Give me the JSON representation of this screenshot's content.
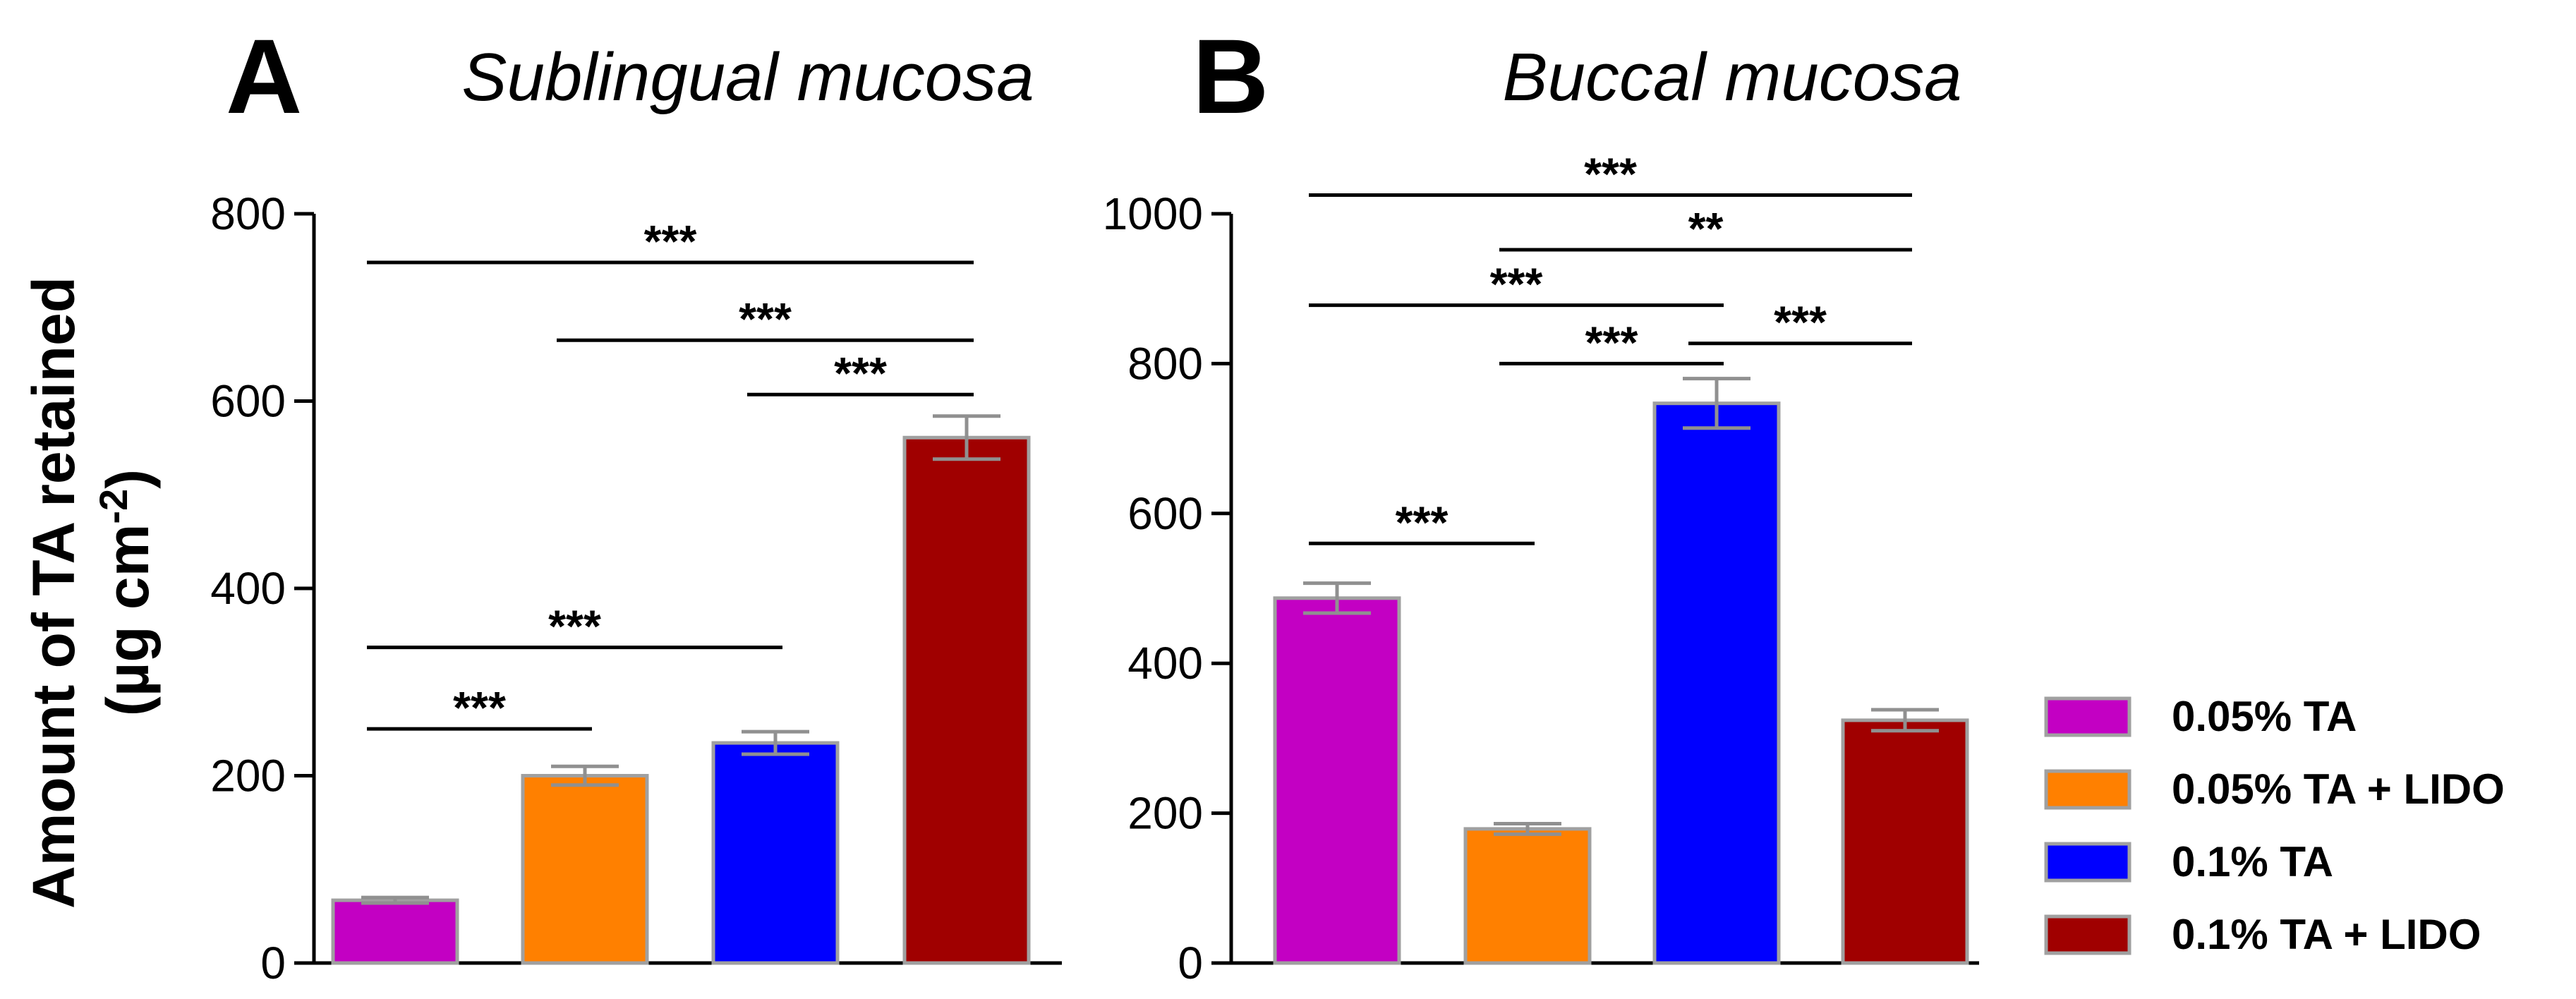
{
  "chart_data": [
    {
      "type": "bar",
      "panel": "A",
      "title": "Sublingual mucosa",
      "ylabel": "Amount of TA retained",
      "ylabel_units": "(µg cm-2)",
      "ylim": [
        0,
        800
      ],
      "yticks": [
        0,
        200,
        400,
        600,
        800
      ],
      "categories": [
        "0.05% TA",
        "0.05% TA + LIDO",
        "0.1% TA",
        "0.1% TA +  LIDO"
      ],
      "values": [
        67,
        200,
        235,
        561
      ],
      "errors": [
        3,
        10,
        12,
        23
      ],
      "colors": [
        "#c300c3",
        "#ff8000",
        "#0000ff",
        "#a00000"
      ],
      "significance": [
        {
          "from": 0,
          "to": 3,
          "y": 748,
          "label": "***"
        },
        {
          "from": 1,
          "to": 3,
          "y": 665,
          "label": "***"
        },
        {
          "from": 2,
          "to": 3,
          "y": 607,
          "label": "***"
        },
        {
          "from": 0,
          "to": 2,
          "y": 337,
          "label": "***"
        },
        {
          "from": 0,
          "to": 1,
          "y": 250,
          "label": "***"
        }
      ]
    },
    {
      "type": "bar",
      "panel": "B",
      "title": "Buccal mucosa",
      "ylim": [
        0,
        1000
      ],
      "yticks": [
        0,
        200,
        400,
        600,
        800,
        1000
      ],
      "categories": [
        "0.05% TA",
        "0.05% TA + LIDO",
        "0.1% TA",
        "0.1% TA +  LIDO"
      ],
      "values": [
        487,
        179,
        747,
        324
      ],
      "errors": [
        20,
        7,
        33,
        14
      ],
      "colors": [
        "#c300c3",
        "#ff8000",
        "#0000ff",
        "#a00000"
      ],
      "significance": [
        {
          "from": 0,
          "to": 3,
          "y": 1025,
          "label": "***"
        },
        {
          "from": 1,
          "to": 3,
          "y": 952,
          "label": "**"
        },
        {
          "from": 0,
          "to": 2,
          "y": 878,
          "label": "***"
        },
        {
          "from": 1,
          "to": 2,
          "y": 800,
          "label": "***"
        },
        {
          "from": 2,
          "to": 3,
          "y": 827,
          "label": "***"
        },
        {
          "from": 0,
          "to": 1,
          "y": 560,
          "label": "***"
        }
      ]
    }
  ],
  "legend": {
    "position": "right",
    "items": [
      {
        "label": "0.05% TA",
        "color": "#c300c3"
      },
      {
        "label": "0.05% TA + LIDO",
        "color": "#ff8000"
      },
      {
        "label": "0.1% TA",
        "color": "#0000ff"
      },
      {
        "label": "0.1% TA +  LIDO",
        "color": "#a00000"
      }
    ]
  },
  "style": {
    "bar_edge_color": "#a0a0a0",
    "error_bar_color": "#909090",
    "axis_color": "#000000"
  }
}
